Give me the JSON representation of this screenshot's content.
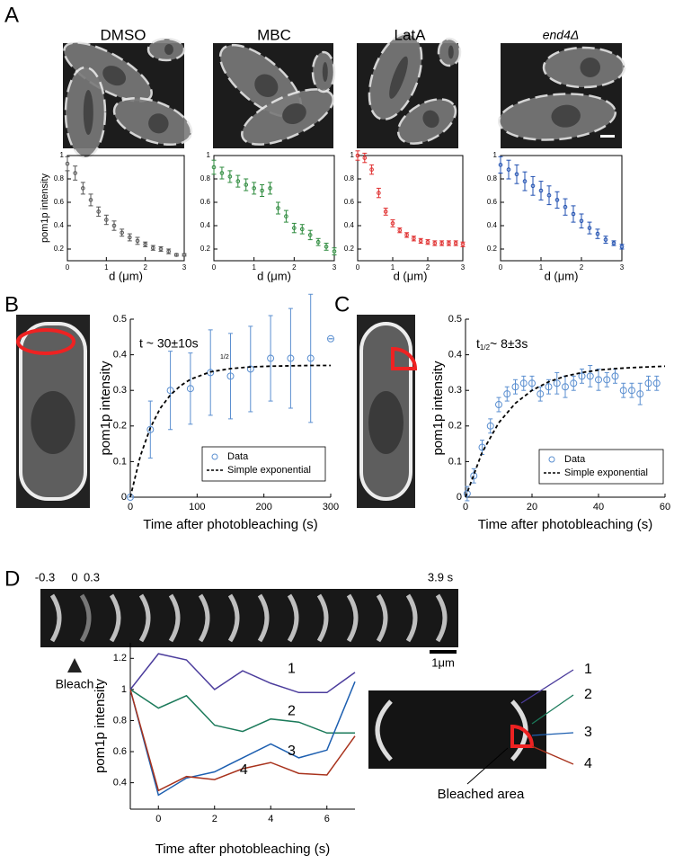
{
  "figure": {
    "panel_labels": [
      "A",
      "B",
      "C",
      "D"
    ],
    "kymograph": {
      "time_labels": [
        "-0.3",
        "0",
        "0.3",
        "3.9 s"
      ],
      "bleach": "Bleach",
      "scale": "1μm"
    },
    "inset": {
      "labels": [
        "1",
        "2",
        "3",
        "4"
      ],
      "bleached_area": "Bleached area"
    }
  },
  "chart_data": [
    {
      "type": "errorbar",
      "title": "DMSO",
      "xlabel": "d (μm)",
      "ylabel": "pom1p intensity",
      "xlim": [
        0,
        3
      ],
      "ylim": [
        0.1,
        1
      ],
      "xticks": [
        0,
        1,
        2,
        3
      ],
      "yticks": [
        0.2,
        0.4,
        0.6,
        0.8,
        1
      ],
      "x": [
        0,
        0.2,
        0.4,
        0.6,
        0.8,
        1,
        1.2,
        1.4,
        1.6,
        1.8,
        2,
        2.2,
        2.4,
        2.6,
        2.8,
        3
      ],
      "series": [
        {
          "color": "#555555",
          "values": [
            0.93,
            0.85,
            0.72,
            0.62,
            0.52,
            0.45,
            0.4,
            0.34,
            0.3,
            0.27,
            0.24,
            0.21,
            0.2,
            0.18,
            0.15,
            0.15
          ],
          "error": [
            0.06,
            0.06,
            0.05,
            0.05,
            0.04,
            0.04,
            0.04,
            0.03,
            0.03,
            0.03,
            0.02,
            0.02,
            0.02,
            0.02,
            0.01,
            0.01
          ]
        }
      ]
    },
    {
      "type": "errorbar",
      "title": "MBC",
      "xlabel": "d (μm)",
      "xlim": [
        0,
        3
      ],
      "ylim": [
        0.1,
        1
      ],
      "xticks": [
        0,
        1,
        2,
        3
      ],
      "yticks": [
        0.2,
        0.4,
        0.6,
        0.8,
        1
      ],
      "x": [
        0,
        0.2,
        0.4,
        0.6,
        0.8,
        1,
        1.2,
        1.4,
        1.6,
        1.8,
        2,
        2.2,
        2.4,
        2.6,
        2.8,
        3
      ],
      "series": [
        {
          "color": "#2e8b3e",
          "values": [
            0.9,
            0.85,
            0.82,
            0.78,
            0.75,
            0.72,
            0.7,
            0.72,
            0.55,
            0.48,
            0.38,
            0.37,
            0.32,
            0.26,
            0.22,
            0.18
          ],
          "error": [
            0.06,
            0.05,
            0.05,
            0.05,
            0.05,
            0.05,
            0.05,
            0.05,
            0.05,
            0.05,
            0.04,
            0.04,
            0.04,
            0.03,
            0.03,
            0.03
          ]
        }
      ]
    },
    {
      "type": "errorbar",
      "title": "LatA",
      "xlabel": "d (μm)",
      "xlim": [
        0,
        3
      ],
      "ylim": [
        0.1,
        1
      ],
      "xticks": [
        0,
        1,
        2,
        3
      ],
      "yticks": [
        0.2,
        0.4,
        0.6,
        0.8,
        1
      ],
      "x": [
        0,
        0.2,
        0.4,
        0.6,
        0.8,
        1,
        1.2,
        1.4,
        1.6,
        1.8,
        2,
        2.2,
        2.4,
        2.6,
        2.8,
        3
      ],
      "series": [
        {
          "color": "#e03030",
          "values": [
            1,
            0.98,
            0.88,
            0.68,
            0.52,
            0.42,
            0.36,
            0.32,
            0.29,
            0.27,
            0.26,
            0.25,
            0.25,
            0.25,
            0.25,
            0.24
          ],
          "error": [
            0.04,
            0.04,
            0.04,
            0.04,
            0.03,
            0.03,
            0.02,
            0.02,
            0.02,
            0.02,
            0.02,
            0.02,
            0.02,
            0.02,
            0.02,
            0.02
          ]
        }
      ]
    },
    {
      "type": "errorbar",
      "title": "end4Δ",
      "xlabel": "d (μm)",
      "xlim": [
        0,
        3
      ],
      "ylim": [
        0.1,
        1
      ],
      "xticks": [
        0,
        1,
        2,
        3
      ],
      "yticks": [
        0.2,
        0.4,
        0.6,
        0.8,
        1
      ],
      "x": [
        0,
        0.2,
        0.4,
        0.6,
        0.8,
        1,
        1.2,
        1.4,
        1.6,
        1.8,
        2,
        2.2,
        2.4,
        2.6,
        2.8,
        3
      ],
      "series": [
        {
          "color": "#1f4fb0",
          "values": [
            0.92,
            0.88,
            0.84,
            0.78,
            0.74,
            0.7,
            0.66,
            0.62,
            0.56,
            0.5,
            0.44,
            0.38,
            0.33,
            0.28,
            0.25,
            0.22
          ],
          "error": [
            0.07,
            0.08,
            0.08,
            0.08,
            0.08,
            0.08,
            0.08,
            0.07,
            0.07,
            0.07,
            0.06,
            0.05,
            0.04,
            0.03,
            0.02,
            0.02
          ]
        }
      ]
    },
    {
      "type": "errorbar",
      "xlabel": "Time after photobleaching (s)",
      "ylabel": "pom1p intensity",
      "annotation": "t  ~ 30±10s",
      "annotation_2": "1/2",
      "legend": "lower right",
      "xlim": [
        0,
        300
      ],
      "ylim": [
        0,
        0.5
      ],
      "xticks": [
        0,
        100,
        200,
        300
      ],
      "yticks": [
        0,
        0.1,
        0.2,
        0.3,
        0.4,
        0.5
      ],
      "series": [
        {
          "name": "Data",
          "color": "#5b8fd0",
          "marker": "circle",
          "x": [
            0,
            30,
            60,
            90,
            120,
            150,
            180,
            210,
            240,
            270,
            300
          ],
          "values": [
            0,
            0.19,
            0.3,
            0.305,
            0.35,
            0.34,
            0.36,
            0.39,
            0.39,
            0.39,
            0.445
          ],
          "error": [
            0,
            0.08,
            0.11,
            0.1,
            0.12,
            0.12,
            0.12,
            0.12,
            0.14,
            0.18,
            0
          ]
        },
        {
          "name": "Simple exponential",
          "color": "#000000",
          "line_style": "dashed",
          "x": [
            0,
            15,
            30,
            45,
            60,
            75,
            90,
            120,
            150,
            180,
            210,
            240,
            270,
            300
          ],
          "values": [
            0,
            0.116,
            0.195,
            0.25,
            0.287,
            0.313,
            0.331,
            0.352,
            0.361,
            0.366,
            0.368,
            0.369,
            0.37,
            0.37
          ]
        }
      ]
    },
    {
      "type": "errorbar",
      "xlabel": "Time after photobleaching (s)",
      "ylabel": "pom1p intensity",
      "annotation": [
        "t",
        "1/2",
        "~ 8±3s"
      ],
      "legend": "lower right",
      "xlim": [
        0,
        60
      ],
      "ylim": [
        0,
        0.5
      ],
      "xticks": [
        0,
        20,
        40,
        60
      ],
      "yticks": [
        0,
        0.1,
        0.2,
        0.3,
        0.4,
        0.5
      ],
      "series": [
        {
          "name": "Data",
          "color": "#5b8fd0",
          "marker": "circle",
          "x": [
            0.5,
            2.5,
            5,
            7.5,
            10,
            12.5,
            15,
            17.5,
            20,
            22.5,
            25,
            27.5,
            30,
            32.5,
            35,
            37.5,
            40,
            42.5,
            45,
            47.5,
            50,
            52.5,
            55,
            57.5
          ],
          "values": [
            0.01,
            0.06,
            0.14,
            0.2,
            0.26,
            0.29,
            0.31,
            0.32,
            0.32,
            0.29,
            0.31,
            0.32,
            0.31,
            0.32,
            0.34,
            0.34,
            0.33,
            0.33,
            0.34,
            0.3,
            0.3,
            0.29,
            0.32,
            0.32
          ],
          "error": [
            0.02,
            0.02,
            0.02,
            0.02,
            0.02,
            0.02,
            0.02,
            0.02,
            0.02,
            0.02,
            0.02,
            0.03,
            0.03,
            0.02,
            0.02,
            0.03,
            0.03,
            0.02,
            0.02,
            0.02,
            0.02,
            0.03,
            0.02,
            0.02
          ]
        },
        {
          "name": "Simple exponential",
          "color": "#000000",
          "line_style": "dashed",
          "x": [
            0,
            5,
            10,
            15,
            20,
            25,
            30,
            35,
            40,
            45,
            50,
            55,
            60
          ],
          "values": [
            0,
            0.126,
            0.209,
            0.264,
            0.3,
            0.324,
            0.34,
            0.35,
            0.357,
            0.361,
            0.364,
            0.366,
            0.368
          ]
        }
      ]
    },
    {
      "type": "line",
      "xlabel": "Time after photobleaching (s)",
      "ylabel": "pom1p intensity",
      "xlim": [
        -1,
        7
      ],
      "ylim": [
        0.23,
        1.3
      ],
      "xticks": [
        0,
        2,
        4,
        6
      ],
      "yticks": [
        0.4,
        0.6,
        0.8,
        1,
        1.2
      ],
      "x": [
        -1,
        0,
        1,
        2,
        3,
        4,
        5,
        6,
        7
      ],
      "series": [
        {
          "name": "1",
          "color": "#4b3c9c",
          "values": [
            1,
            1.23,
            1.19,
            1,
            1.12,
            1.04,
            0.98,
            0.98,
            1.11
          ]
        },
        {
          "name": "2",
          "color": "#1b7a5a",
          "values": [
            1,
            0.88,
            0.96,
            0.77,
            0.73,
            0.81,
            0.79,
            0.72,
            0.72
          ]
        },
        {
          "name": "3",
          "color": "#1d5fb0",
          "values": [
            1,
            0.32,
            0.43,
            0.47,
            0.56,
            0.65,
            0.56,
            0.61,
            1.05
          ]
        },
        {
          "name": "4",
          "color": "#a8321c",
          "values": [
            1,
            0.35,
            0.44,
            0.42,
            0.49,
            0.53,
            0.46,
            0.45,
            0.7
          ]
        }
      ]
    }
  ]
}
